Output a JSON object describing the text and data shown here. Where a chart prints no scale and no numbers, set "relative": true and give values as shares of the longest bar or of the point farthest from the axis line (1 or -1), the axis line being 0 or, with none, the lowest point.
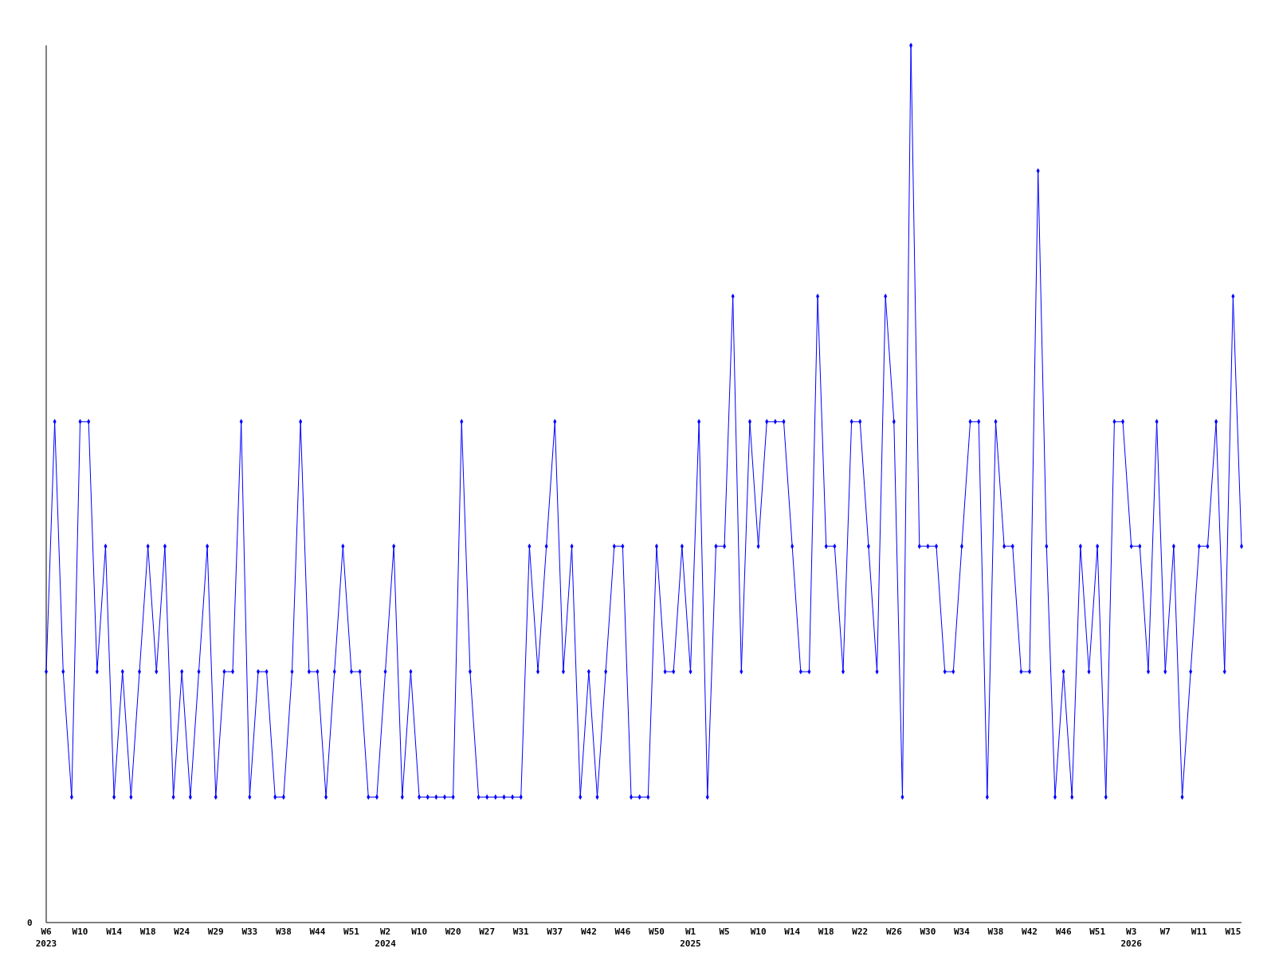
{
  "chart_data": {
    "type": "line",
    "relative": true,
    "marker": "diamond",
    "line_style": "solid",
    "annotations": [
      "0"
    ],
    "categories": [
      "W6\n2023",
      null,
      null,
      null,
      "W10",
      null,
      null,
      null,
      "W14",
      null,
      null,
      null,
      "W18",
      null,
      null,
      null,
      "W24",
      null,
      null,
      null,
      "W29",
      null,
      null,
      null,
      "W33",
      null,
      null,
      null,
      "W38",
      null,
      null,
      null,
      "W44",
      null,
      null,
      null,
      "W51",
      null,
      null,
      null,
      "W2\n2024",
      null,
      null,
      null,
      "W10",
      null,
      null,
      null,
      "W20",
      null,
      null,
      null,
      "W27",
      null,
      null,
      null,
      "W31",
      null,
      null,
      null,
      "W37",
      null,
      null,
      null,
      "W42",
      null,
      null,
      null,
      "W46",
      null,
      null,
      null,
      "W50",
      null,
      null,
      null,
      "W1\n2025",
      null,
      null,
      null,
      "W5",
      null,
      null,
      null,
      "W10",
      null,
      null,
      null,
      "W14",
      null,
      null,
      null,
      "W18",
      null,
      null,
      null,
      "W22",
      null,
      null,
      null,
      "W26",
      null,
      null,
      null,
      "W30",
      null,
      null,
      null,
      "W34",
      null,
      null,
      null,
      "W38",
      null,
      null,
      null,
      "W42",
      null,
      null,
      null,
      "W46",
      null,
      null,
      null,
      "W51",
      null,
      null,
      null,
      "W3\n2026",
      null,
      null,
      null,
      "W7",
      null,
      null,
      null,
      "W11",
      null,
      null,
      null,
      "W15",
      null
    ],
    "series": [
      {
        "color": "#0000ff",
        "values": [
          0.286,
          0.571,
          0.286,
          0.143,
          0.571,
          0.571,
          0.286,
          0.429,
          0.143,
          0.286,
          0.143,
          0.286,
          0.429,
          0.286,
          0.429,
          0.143,
          0.286,
          0.143,
          0.286,
          0.429,
          0.143,
          0.286,
          0.286,
          0.571,
          0.143,
          0.286,
          0.286,
          0.143,
          0.143,
          0.286,
          0.571,
          0.286,
          0.286,
          0.143,
          0.286,
          0.429,
          0.286,
          0.286,
          0.143,
          0.143,
          0.286,
          0.429,
          0.143,
          0.286,
          0.143,
          0.143,
          0.143,
          0.143,
          0.143,
          0.571,
          0.286,
          0.143,
          0.143,
          0.143,
          0.143,
          0.143,
          0.143,
          0.429,
          0.286,
          0.429,
          0.571,
          0.286,
          0.429,
          0.143,
          0.286,
          0.143,
          0.286,
          0.429,
          0.429,
          0.143,
          0.143,
          0.143,
          0.429,
          0.286,
          0.286,
          0.429,
          0.286,
          0.571,
          0.143,
          0.429,
          0.429,
          0.714,
          0.286,
          0.571,
          0.429,
          0.571,
          0.571,
          0.571,
          0.429,
          0.286,
          0.286,
          0.714,
          0.429,
          0.429,
          0.286,
          0.571,
          0.571,
          0.429,
          0.286,
          0.714,
          0.571,
          0.143,
          1,
          0.429,
          0.429,
          0.429,
          0.286,
          0.286,
          0.429,
          0.571,
          0.571,
          0.143,
          0.571,
          0.429,
          0.429,
          0.286,
          0.286,
          0.857,
          0.429,
          0.143,
          0.286,
          0.143,
          0.429,
          0.286,
          0.429,
          0.143,
          0.571,
          0.571,
          0.429,
          0.429,
          0.286,
          0.571,
          0.286,
          0.429,
          0.143,
          0.286,
          0.429,
          0.429,
          0.571,
          0.286,
          0.714,
          0.429
        ]
      }
    ]
  }
}
